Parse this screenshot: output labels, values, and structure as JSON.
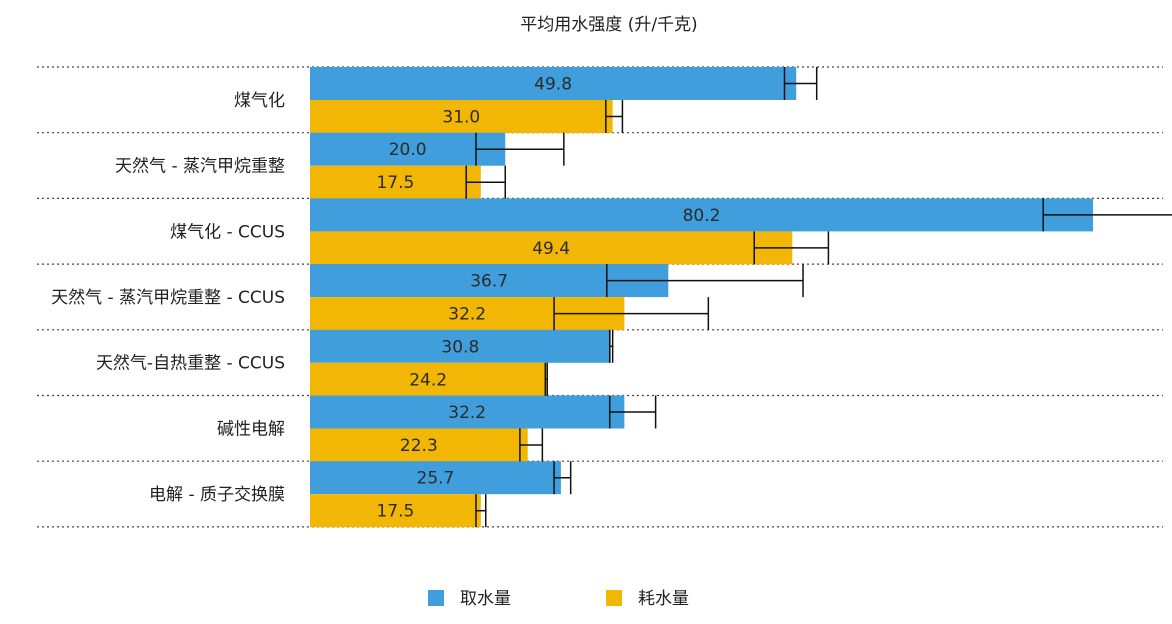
{
  "chart_data": {
    "type": "bar",
    "orientation": "horizontal",
    "title": "平均用水强度 (升/千克)",
    "categories": [
      "煤气化",
      "天然气 - 蒸汽甲烷重整",
      "煤气化 - CCUS",
      "天然气 - 蒸汽甲烷重整 - CCUS",
      "天然气-自热重整 - CCUS",
      "碱性电解",
      "电解 - 质子交换膜"
    ],
    "series": [
      {
        "name": "取水量",
        "color": "#3f9edb",
        "values": [
          49.8,
          20.0,
          80.2,
          36.7,
          30.8,
          32.2,
          25.7
        ],
        "value_labels": [
          "49.8",
          "20.0",
          "80.2",
          "36.7",
          "30.8",
          "32.2",
          "25.7"
        ],
        "error_low": [
          48.6,
          17.0,
          75.1,
          30.4,
          30.7,
          30.7,
          25.0
        ],
        "error_high": [
          51.9,
          26.0,
          92.0,
          50.5,
          31.0,
          35.4,
          26.7
        ]
      },
      {
        "name": "耗水量",
        "color": "#f2b705",
        "values": [
          31.0,
          17.5,
          49.4,
          32.2,
          24.2,
          22.3,
          17.5
        ],
        "value_labels": [
          "31.0",
          "17.5",
          "49.4",
          "32.2",
          "24.2",
          "22.3",
          "17.5"
        ],
        "error_low": [
          30.3,
          16.0,
          45.5,
          25.0,
          24.1,
          21.5,
          17.0
        ],
        "error_high": [
          32.0,
          20.0,
          53.1,
          40.8,
          24.3,
          23.8,
          18.0
        ]
      }
    ],
    "xlim": [
      0,
      92
    ],
    "grid": "horizontal dotted separators",
    "legend": "bottom-center"
  }
}
